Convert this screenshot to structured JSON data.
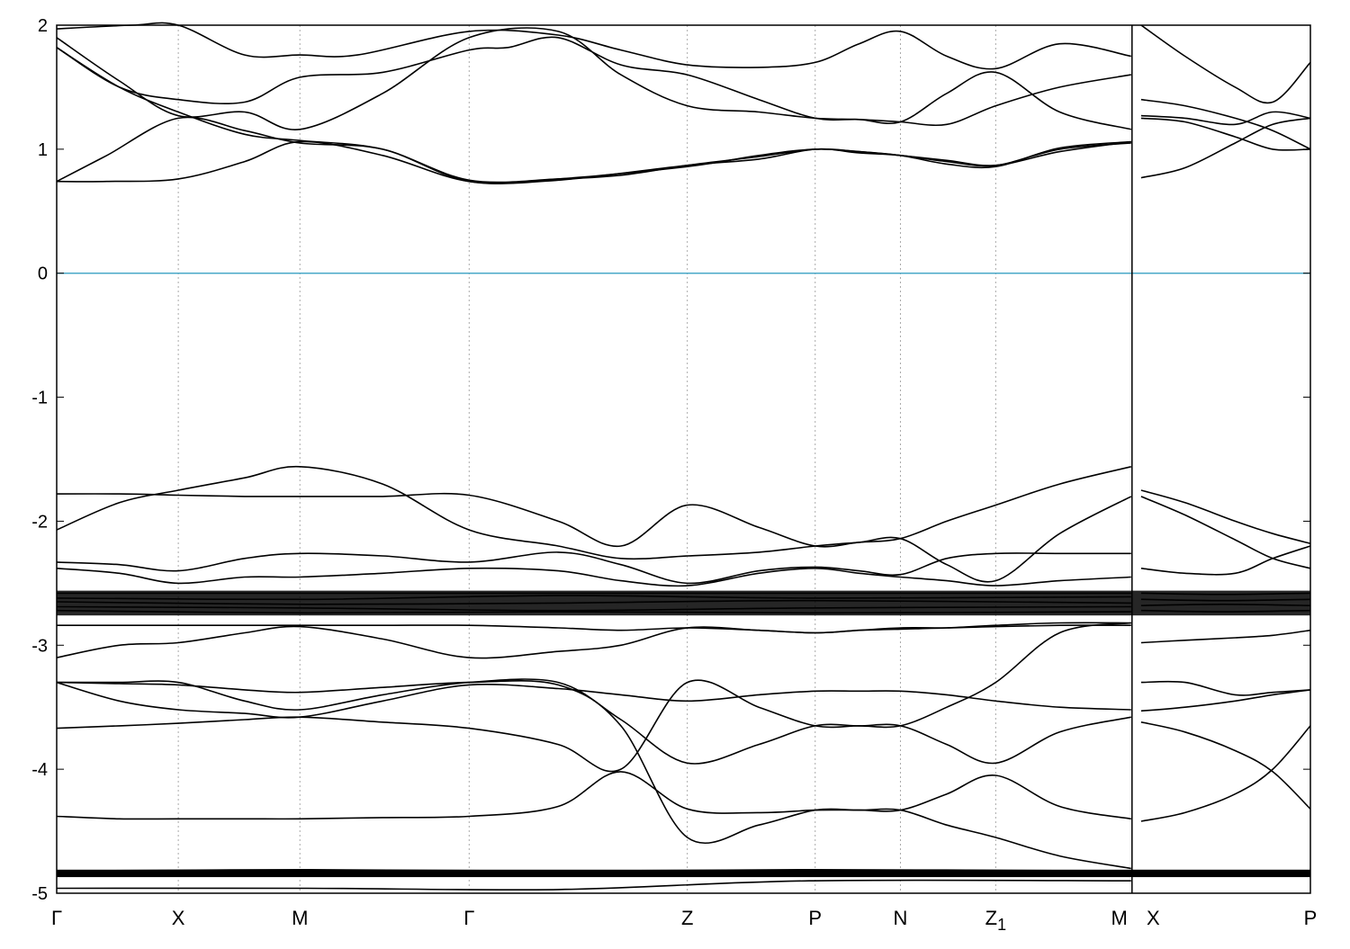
{
  "chart_data": {
    "type": "line",
    "title": "",
    "xlabel": "",
    "ylabel": "",
    "ylim": [
      -5,
      2
    ],
    "y_ticks": [
      "2",
      "1",
      "0",
      "-1",
      "-2",
      "-3",
      "-4",
      "-5"
    ],
    "y_tick_values": [
      2,
      1,
      0,
      -1,
      -2,
      -3,
      -4,
      -5
    ],
    "k_path": [
      {
        "label": "Γ",
        "sub": "",
        "k": 0
      },
      {
        "label": "X",
        "sub": "",
        "k": 0.097
      },
      {
        "label": "M",
        "sub": "",
        "k": 0.194
      },
      {
        "label": "Γ",
        "sub": "",
        "k": 0.329
      },
      {
        "label": "Z",
        "sub": "",
        "k": 0.503
      },
      {
        "label": "P",
        "sub": "",
        "k": 0.605
      },
      {
        "label": "N",
        "sub": "",
        "k": 0.673
      },
      {
        "label": "Z",
        "sub": "1",
        "k": 0.749
      },
      {
        "label": "M",
        "sub": "",
        "k": 0.857
      },
      {
        "label": "X",
        "sub": "",
        "k": 0.865
      },
      {
        "label": "P",
        "sub": "",
        "k": 1.0
      }
    ],
    "vertical_grid_k": [
      0.097,
      0.194,
      0.329,
      0.503,
      0.605,
      0.673,
      0.749
    ],
    "path_break_k": 0.857,
    "fermi_level": 0,
    "fermi_color": "#4aa8c8",
    "line_color": "#000000",
    "grid_color": "#aaaaaa",
    "series": [
      {
        "x": [
          0,
          0.04,
          0.097,
          0.15,
          0.194,
          0.26,
          0.329,
          0.4,
          0.503,
          0.56,
          0.605,
          0.64,
          0.673,
          0.71,
          0.749,
          0.8,
          0.857
        ],
        "values": [
          0.74,
          0.74,
          0.76,
          0.9,
          1.06,
          0.95,
          0.74,
          0.75,
          0.87,
          0.92,
          1.0,
          0.97,
          0.95,
          0.9,
          0.87,
          1.0,
          1.05
        ]
      },
      {
        "x": [
          0,
          0.04,
          0.097,
          0.15,
          0.194,
          0.26,
          0.329,
          0.4,
          0.503,
          0.56,
          0.605,
          0.64,
          0.673,
          0.71,
          0.749,
          0.8,
          0.857
        ],
        "values": [
          0.74,
          0.95,
          1.25,
          1.15,
          1.05,
          1.0,
          0.74,
          0.76,
          0.86,
          0.95,
          1.0,
          0.98,
          0.95,
          0.88,
          0.86,
          1.01,
          1.06
        ]
      },
      {
        "x": [
          0,
          0.05,
          0.097,
          0.15,
          0.194,
          0.26,
          0.329,
          0.36,
          0.4,
          0.45,
          0.503,
          0.56,
          0.605,
          0.64,
          0.673,
          0.71,
          0.749,
          0.8,
          0.857
        ],
        "values": [
          1.82,
          1.5,
          1.4,
          1.38,
          1.58,
          1.62,
          1.8,
          1.82,
          1.9,
          1.68,
          1.6,
          1.4,
          1.25,
          1.24,
          1.22,
          1.45,
          1.62,
          1.3,
          1.16
        ]
      },
      {
        "x": [
          0,
          0.05,
          0.097,
          0.15,
          0.194,
          0.26,
          0.329,
          0.4,
          0.45,
          0.503,
          0.56,
          0.605,
          0.64,
          0.673,
          0.71,
          0.749,
          0.8,
          0.857
        ],
        "values": [
          1.9,
          1.55,
          1.27,
          1.3,
          1.16,
          1.45,
          1.9,
          1.95,
          1.6,
          1.35,
          1.3,
          1.25,
          1.24,
          1.22,
          1.2,
          1.35,
          1.5,
          1.6
        ]
      },
      {
        "x": [
          0,
          0.06,
          0.097,
          0.15,
          0.194,
          0.24,
          0.329,
          0.4,
          0.45,
          0.503,
          0.56,
          0.605,
          0.64,
          0.673,
          0.71,
          0.749,
          0.8,
          0.857
        ],
        "values": [
          1.97,
          2.0,
          2.0,
          1.76,
          1.76,
          1.76,
          1.95,
          1.92,
          1.8,
          1.68,
          1.66,
          1.7,
          1.85,
          1.95,
          1.75,
          1.65,
          1.85,
          1.75
        ]
      },
      {
        "x": [
          0,
          0.05,
          0.097,
          0.15,
          0.194,
          0.26,
          0.329,
          0.4,
          0.45,
          0.503,
          0.56,
          0.605,
          0.64,
          0.673,
          0.71,
          0.749,
          0.8,
          0.857
        ],
        "values": [
          1.82,
          1.5,
          1.3,
          1.12,
          1.07,
          1.0,
          0.75,
          0.76,
          0.79,
          0.87,
          0.94,
          1.0,
          0.98,
          0.95,
          0.91,
          0.87,
          0.98,
          1.06
        ]
      },
      {
        "x": [
          0.865,
          0.9,
          0.94,
          0.97,
          1.0
        ],
        "values": [
          0.77,
          0.85,
          1.05,
          1.2,
          1.25
        ]
      },
      {
        "x": [
          0.865,
          0.9,
          0.94,
          0.97,
          1.0
        ],
        "values": [
          1.25,
          1.22,
          1.1,
          1.0,
          1.0
        ]
      },
      {
        "x": [
          0.865,
          0.9,
          0.94,
          0.97,
          1.0
        ],
        "values": [
          1.27,
          1.25,
          1.2,
          1.3,
          1.25
        ]
      },
      {
        "x": [
          0.865,
          0.9,
          0.94,
          0.97,
          1.0
        ],
        "values": [
          1.4,
          1.35,
          1.25,
          1.15,
          1.0
        ]
      },
      {
        "x": [
          0.865,
          0.9,
          0.94,
          0.97,
          1.0
        ],
        "values": [
          2.0,
          1.75,
          1.5,
          1.38,
          1.7
        ]
      },
      {
        "x": [
          0,
          0.05,
          0.097,
          0.15,
          0.194,
          0.26,
          0.329,
          0.4,
          0.45,
          0.503,
          0.56,
          0.605,
          0.64,
          0.673,
          0.71,
          0.749,
          0.8,
          0.857
        ],
        "values": [
          -1.78,
          -1.78,
          -1.79,
          -1.8,
          -1.8,
          -1.8,
          -1.79,
          -2.0,
          -2.2,
          -1.87,
          -2.05,
          -2.2,
          -2.17,
          -2.14,
          -2.0,
          -1.87,
          -1.7,
          -1.56
        ]
      },
      {
        "x": [
          0,
          0.05,
          0.097,
          0.15,
          0.194,
          0.26,
          0.329,
          0.4,
          0.45,
          0.503,
          0.56,
          0.605,
          0.64,
          0.673,
          0.71,
          0.749,
          0.8,
          0.857
        ],
        "values": [
          -2.07,
          -1.85,
          -1.75,
          -1.65,
          -1.56,
          -1.7,
          -2.07,
          -2.2,
          -2.3,
          -2.28,
          -2.25,
          -2.2,
          -2.17,
          -2.14,
          -2.35,
          -2.48,
          -2.1,
          -1.8
        ]
      },
      {
        "x": [
          0,
          0.05,
          0.097,
          0.15,
          0.194,
          0.26,
          0.329,
          0.4,
          0.45,
          0.503,
          0.56,
          0.605,
          0.64,
          0.673,
          0.71,
          0.749,
          0.8,
          0.857
        ],
        "values": [
          -2.33,
          -2.35,
          -2.4,
          -2.3,
          -2.26,
          -2.28,
          -2.33,
          -2.25,
          -2.35,
          -2.5,
          -2.4,
          -2.37,
          -2.4,
          -2.43,
          -2.3,
          -2.26,
          -2.26,
          -2.26
        ]
      },
      {
        "x": [
          0,
          0.05,
          0.097,
          0.15,
          0.194,
          0.26,
          0.329,
          0.4,
          0.45,
          0.503,
          0.56,
          0.605,
          0.64,
          0.673,
          0.71,
          0.749,
          0.8,
          0.857
        ],
        "values": [
          -2.38,
          -2.42,
          -2.5,
          -2.45,
          -2.45,
          -2.42,
          -2.38,
          -2.4,
          -2.48,
          -2.52,
          -2.42,
          -2.38,
          -2.42,
          -2.45,
          -2.48,
          -2.52,
          -2.48,
          -2.45
        ]
      },
      {
        "x": [
          0.865,
          0.9,
          0.94,
          0.97,
          1.0
        ],
        "values": [
          -1.75,
          -1.85,
          -2.0,
          -2.1,
          -2.18
        ]
      },
      {
        "x": [
          0.865,
          0.9,
          0.94,
          0.97,
          1.0
        ],
        "values": [
          -1.8,
          -1.95,
          -2.15,
          -2.3,
          -2.38
        ]
      },
      {
        "x": [
          0.865,
          0.9,
          0.94,
          0.97,
          1.0
        ],
        "values": [
          -2.38,
          -2.42,
          -2.42,
          -2.3,
          -2.2
        ]
      },
      {
        "x": [
          0,
          0.05,
          0.097,
          0.15,
          0.194,
          0.26,
          0.329,
          0.4,
          0.45,
          0.503,
          0.56,
          0.605,
          0.64,
          0.673,
          0.71,
          0.749,
          0.8,
          0.857
        ],
        "values": [
          -2.84,
          -2.84,
          -2.84,
          -2.84,
          -2.84,
          -2.84,
          -2.84,
          -2.86,
          -2.88,
          -2.86,
          -2.88,
          -2.9,
          -2.88,
          -2.86,
          -2.86,
          -2.85,
          -2.84,
          -2.84
        ]
      },
      {
        "x": [
          0,
          0.05,
          0.097,
          0.15,
          0.194,
          0.26,
          0.329,
          0.4,
          0.45,
          0.503,
          0.56,
          0.605,
          0.64,
          0.673,
          0.71,
          0.749,
          0.8,
          0.857
        ],
        "values": [
          -3.1,
          -3.0,
          -2.98,
          -2.9,
          -2.85,
          -2.95,
          -3.1,
          -3.05,
          -3.0,
          -2.86,
          -2.88,
          -2.9,
          -2.88,
          -2.87,
          -2.86,
          -2.84,
          -2.82,
          -2.82
        ]
      },
      {
        "x": [
          0,
          0.05,
          0.097,
          0.15,
          0.194,
          0.26,
          0.329,
          0.4,
          0.45,
          0.503,
          0.56,
          0.605,
          0.64,
          0.673,
          0.71,
          0.749,
          0.8,
          0.857
        ],
        "values": [
          -3.3,
          -3.3,
          -3.3,
          -3.45,
          -3.52,
          -3.4,
          -3.3,
          -3.3,
          -3.6,
          -3.95,
          -3.8,
          -3.65,
          -3.65,
          -3.65,
          -3.8,
          -3.95,
          -3.7,
          -3.58
        ]
      },
      {
        "x": [
          0,
          0.05,
          0.097,
          0.15,
          0.194,
          0.26,
          0.329,
          0.4,
          0.45,
          0.503,
          0.56,
          0.605,
          0.64,
          0.673,
          0.71,
          0.749,
          0.8,
          0.857
        ],
        "values": [
          -3.3,
          -3.45,
          -3.52,
          -3.55,
          -3.58,
          -3.45,
          -3.32,
          -3.35,
          -3.4,
          -3.45,
          -3.4,
          -3.37,
          -3.37,
          -3.37,
          -3.4,
          -3.45,
          -3.5,
          -3.52
        ]
      },
      {
        "x": [
          0,
          0.05,
          0.097,
          0.15,
          0.194,
          0.26,
          0.329,
          0.4,
          0.45,
          0.503,
          0.56,
          0.605,
          0.64,
          0.673,
          0.71,
          0.749,
          0.8,
          0.857
        ],
        "values": [
          -3.67,
          -3.65,
          -3.63,
          -3.6,
          -3.58,
          -3.62,
          -3.67,
          -3.8,
          -4.0,
          -3.3,
          -3.5,
          -3.65,
          -3.65,
          -3.65,
          -3.5,
          -3.3,
          -2.9,
          -2.82
        ]
      },
      {
        "x": [
          0,
          0.05,
          0.097,
          0.15,
          0.194,
          0.26,
          0.329,
          0.4,
          0.45,
          0.503,
          0.56,
          0.605,
          0.64,
          0.673,
          0.71,
          0.749,
          0.8,
          0.857
        ],
        "values": [
          -4.38,
          -4.4,
          -4.4,
          -4.4,
          -4.4,
          -4.39,
          -4.38,
          -4.3,
          -4.02,
          -4.32,
          -4.35,
          -4.33,
          -4.33,
          -4.33,
          -4.2,
          -4.05,
          -4.3,
          -4.4
        ]
      },
      {
        "x": [
          0,
          0.05,
          0.097,
          0.15,
          0.194,
          0.26,
          0.329,
          0.4,
          0.45,
          0.503,
          0.56,
          0.605,
          0.64,
          0.673,
          0.71,
          0.749,
          0.8,
          0.857
        ],
        "values": [
          -3.3,
          -3.31,
          -3.32,
          -3.36,
          -3.38,
          -3.34,
          -3.3,
          -3.32,
          -3.65,
          -4.55,
          -4.45,
          -4.33,
          -4.33,
          -4.33,
          -4.45,
          -4.55,
          -4.7,
          -4.8
        ]
      },
      {
        "x": [
          0.865,
          0.9,
          0.94,
          0.97,
          1.0
        ],
        "values": [
          -2.98,
          -2.96,
          -2.94,
          -2.92,
          -2.88
        ]
      },
      {
        "x": [
          0.865,
          0.9,
          0.94,
          0.97,
          1.0
        ],
        "values": [
          -3.3,
          -3.3,
          -3.4,
          -3.38,
          -3.36
        ]
      },
      {
        "x": [
          0.865,
          0.9,
          0.94,
          0.97,
          1.0
        ],
        "values": [
          -3.53,
          -3.5,
          -3.45,
          -3.4,
          -3.36
        ]
      },
      {
        "x": [
          0.865,
          0.9,
          0.94,
          0.97,
          1.0
        ],
        "values": [
          -3.62,
          -3.7,
          -3.85,
          -4.02,
          -4.32
        ]
      },
      {
        "x": [
          0.865,
          0.9,
          0.94,
          0.97,
          1.0
        ],
        "values": [
          -4.42,
          -4.35,
          -4.2,
          -4.0,
          -3.65
        ]
      },
      {
        "x": [
          0,
          0.2,
          0.4,
          0.6,
          0.857
        ],
        "values": [
          -2.58,
          -2.58,
          -2.58,
          -2.58,
          -2.58
        ]
      },
      {
        "x": [
          0,
          0.2,
          0.4,
          0.6,
          0.857
        ],
        "values": [
          -2.62,
          -2.63,
          -2.6,
          -2.62,
          -2.61
        ]
      },
      {
        "x": [
          0,
          0.2,
          0.4,
          0.6,
          0.857
        ],
        "values": [
          -2.65,
          -2.67,
          -2.66,
          -2.64,
          -2.66
        ]
      },
      {
        "x": [
          0,
          0.2,
          0.4,
          0.6,
          0.857
        ],
        "values": [
          -2.69,
          -2.7,
          -2.72,
          -2.7,
          -2.69
        ]
      },
      {
        "x": [
          0,
          0.2,
          0.4,
          0.6,
          0.857
        ],
        "values": [
          -2.72,
          -2.74,
          -2.73,
          -2.74,
          -2.73
        ]
      },
      {
        "x": [
          0.865,
          0.93,
          1.0
        ],
        "values": [
          -2.58,
          -2.59,
          -2.58
        ]
      },
      {
        "x": [
          0.865,
          0.93,
          1.0
        ],
        "values": [
          -2.63,
          -2.64,
          -2.63
        ]
      },
      {
        "x": [
          0.865,
          0.93,
          1.0
        ],
        "values": [
          -2.68,
          -2.67,
          -2.68
        ]
      },
      {
        "x": [
          0.865,
          0.93,
          1.0
        ],
        "values": [
          -2.72,
          -2.73,
          -2.72
        ]
      },
      {
        "x": [
          0,
          0.2,
          0.4,
          0.6,
          0.857
        ],
        "values": [
          -4.82,
          -4.81,
          -4.82,
          -4.81,
          -4.82
        ]
      },
      {
        "x": [
          0,
          0.2,
          0.4,
          0.6,
          0.857
        ],
        "values": [
          -4.85,
          -4.86,
          -4.85,
          -4.86,
          -4.85
        ]
      },
      {
        "x": [
          0,
          0.2,
          0.4,
          0.6,
          0.857
        ],
        "values": [
          -4.96,
          -4.96,
          -4.97,
          -4.9,
          -4.9
        ]
      },
      {
        "x": [
          0.865,
          0.93,
          1.0
        ],
        "values": [
          -4.82,
          -4.83,
          -4.82
        ]
      },
      {
        "x": [
          0.865,
          0.93,
          1.0
        ],
        "values": [
          -4.86,
          -4.86,
          -4.86
        ]
      }
    ]
  }
}
